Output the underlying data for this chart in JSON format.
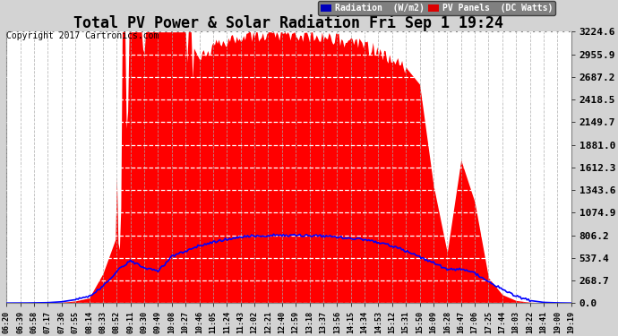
{
  "title": "Total PV Power & Solar Radiation Fri Sep 1 19:24",
  "copyright": "Copyright 2017 Cartronics.com",
  "yticks": [
    0.0,
    268.7,
    537.4,
    806.2,
    1074.9,
    1343.6,
    1612.3,
    1881.0,
    2149.7,
    2418.5,
    2687.2,
    2955.9,
    3224.6
  ],
  "ymax": 3224.6,
  "ymin": 0.0,
  "bg_color": "#d3d3d3",
  "plot_bg_color": "#ffffff",
  "pv_color": "#ff0000",
  "radiation_color": "#0000ff",
  "title_fontsize": 12,
  "copyright_fontsize": 7,
  "xtick_fontsize": 6,
  "ytick_fontsize": 8,
  "xtick_labels": [
    "06:20",
    "06:39",
    "06:58",
    "07:17",
    "07:36",
    "07:55",
    "08:14",
    "08:33",
    "08:52",
    "09:11",
    "09:30",
    "09:49",
    "10:08",
    "10:27",
    "10:46",
    "11:05",
    "11:24",
    "11:43",
    "12:02",
    "12:21",
    "12:40",
    "12:59",
    "13:18",
    "13:37",
    "13:56",
    "14:15",
    "14:34",
    "14:53",
    "15:12",
    "15:31",
    "15:50",
    "16:09",
    "16:28",
    "16:47",
    "17:06",
    "17:25",
    "17:44",
    "18:03",
    "18:22",
    "18:41",
    "19:00",
    "19:19"
  ]
}
